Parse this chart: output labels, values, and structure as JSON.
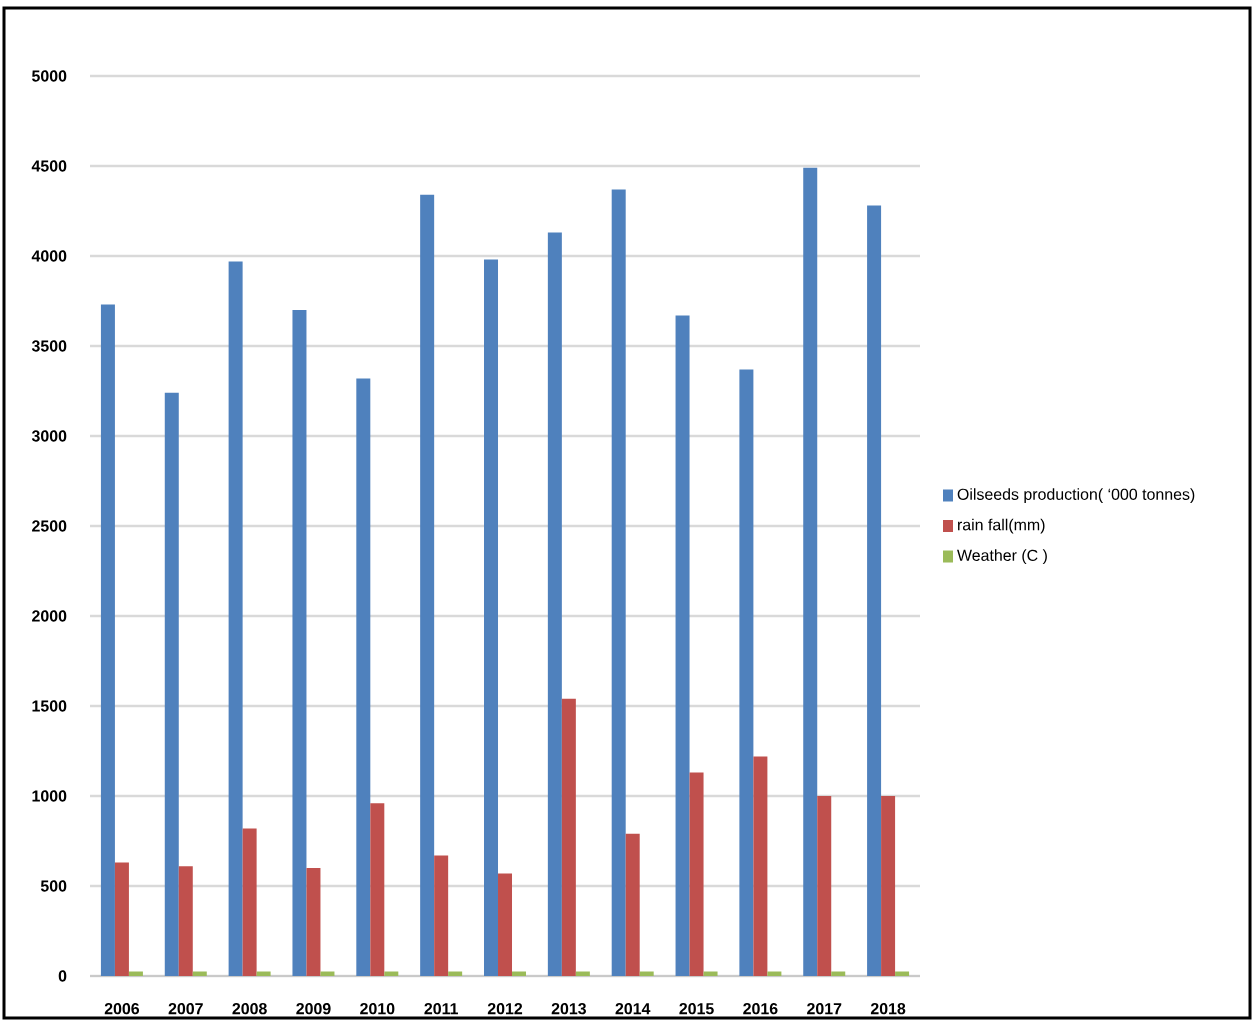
{
  "chart_data": {
    "type": "bar",
    "categories": [
      "2006",
      "2007",
      "2008",
      "2009",
      "2010",
      "2011",
      "2012",
      "2013",
      "2014",
      "2015",
      "2016",
      "2017",
      "2018"
    ],
    "series": [
      {
        "name": "Oilseeds production( ‘000 tonnes)",
        "color": "#4f81bd",
        "values": [
          3730,
          3240,
          3970,
          3700,
          3320,
          4340,
          3980,
          4130,
          4370,
          3670,
          3370,
          4490,
          4280
        ]
      },
      {
        "name": "rain fall(mm)",
        "color": "#c0504d",
        "values": [
          630,
          610,
          820,
          600,
          960,
          670,
          570,
          1540,
          790,
          1130,
          1220,
          1000,
          1000
        ]
      },
      {
        "name": "Weather (C  )",
        "color": "#9bbb59",
        "values": [
          25,
          25,
          25,
          25,
          25,
          25,
          25,
          25,
          25,
          25,
          25,
          25,
          25
        ]
      }
    ],
    "ylim": [
      0,
      5000
    ],
    "yticks": [
      0,
      500,
      1000,
      1500,
      2000,
      2500,
      3000,
      3500,
      4000,
      4500,
      5000
    ],
    "grid": "y",
    "legend": "right"
  }
}
